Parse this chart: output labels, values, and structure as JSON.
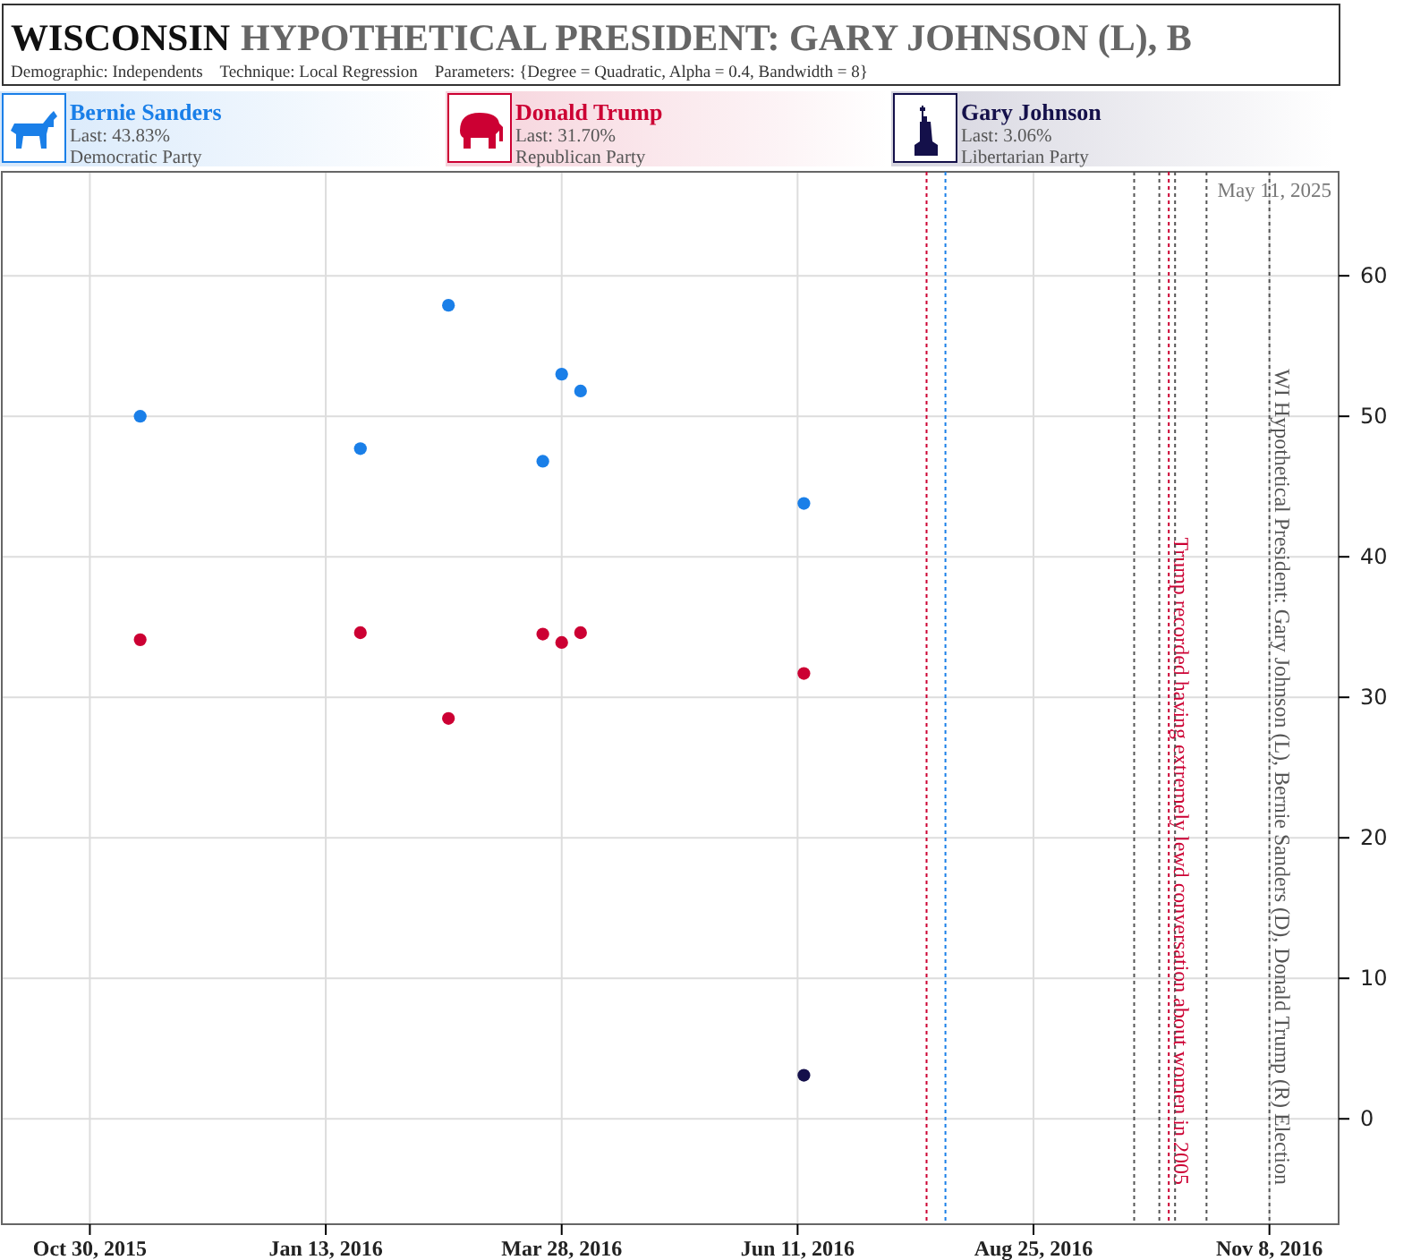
{
  "chart_data": {
    "type": "scatter",
    "title": "WISCONSIN HYPOTHETICAL PRESIDENT: GARY JOHNSON (L), B",
    "subtitle": "Demographic: Independents    Technique: Local Regression    Parameters: {Degree = Quadratic, Alpha = 0.4, Bandwidth = 8}",
    "x": [
      "2015-11-15",
      "2016-01-24",
      "2016-02-21",
      "2016-03-22",
      "2016-03-28",
      "2016-04-03",
      "2016-06-13"
    ],
    "series": [
      {
        "name": "Bernie Sanders",
        "color": "#1a7fe8",
        "values": [
          50.0,
          47.7,
          57.9,
          46.8,
          53.0,
          51.8,
          43.8
        ]
      },
      {
        "name": "Donald Trump",
        "color": "#cc0033",
        "values": [
          34.1,
          34.6,
          28.5,
          34.5,
          33.9,
          34.6,
          31.7
        ]
      },
      {
        "name": "Gary Johnson",
        "color": "#14104a",
        "values": [
          null,
          null,
          null,
          null,
          null,
          null,
          3.1
        ]
      }
    ],
    "xlim": [
      "2015-10-02",
      "2016-11-30"
    ],
    "xticks": [
      {
        "value": "2015-10-30",
        "label": "Oct 30, 2015"
      },
      {
        "value": "2016-01-13",
        "label": "Jan 13, 2016"
      },
      {
        "value": "2016-03-28",
        "label": "Mar 28, 2016"
      },
      {
        "value": "2016-06-11",
        "label": "Jun 11, 2016"
      },
      {
        "value": "2016-08-25",
        "label": "Aug 25, 2016"
      },
      {
        "value": "2016-11-08",
        "label": "Nov 8, 2016"
      }
    ],
    "ylim": [
      -7.5,
      67.4
    ],
    "yticks": [
      0,
      10,
      20,
      30,
      40,
      50,
      60
    ],
    "grid": true,
    "legend": "top",
    "marker": "circle",
    "ref_lines": [
      {
        "axis": "x",
        "value": "2016-07-22",
        "label": null,
        "color": "#cc0033",
        "line_style": "dotted"
      },
      {
        "axis": "x",
        "value": "2016-07-28",
        "label": null,
        "color": "#1a7fe8",
        "line_style": "dotted"
      },
      {
        "axis": "x",
        "value": "2016-09-26",
        "label": null,
        "color": "#555555",
        "line_style": "dotted"
      },
      {
        "axis": "x",
        "value": "2016-10-04",
        "label": null,
        "color": "#555555",
        "line_style": "dotted"
      },
      {
        "axis": "x",
        "value": "2016-10-07",
        "label": "Trump recorded having extremely lewd conversation about women in 2005",
        "color": "#cc0033",
        "line_style": "dotted"
      },
      {
        "axis": "x",
        "value": "2016-10-09",
        "label": null,
        "color": "#555555",
        "line_style": "dotted"
      },
      {
        "axis": "x",
        "value": "2016-10-19",
        "label": null,
        "color": "#555555",
        "line_style": "dotted"
      },
      {
        "axis": "x",
        "value": "2016-11-08",
        "label": "WI Hypothetical President: Gary Johnson (L), Bernie Sanders (D), Donald Trump (R) Election",
        "color": "#555555",
        "line_style": "dotted"
      }
    ],
    "annotations": [
      "May 11, 2025",
      "Last: 43.83%",
      "Democratic Party",
      "Last: 31.70%",
      "Republican Party",
      "Last: 3.06%",
      "Libertarian Party"
    ]
  }
}
